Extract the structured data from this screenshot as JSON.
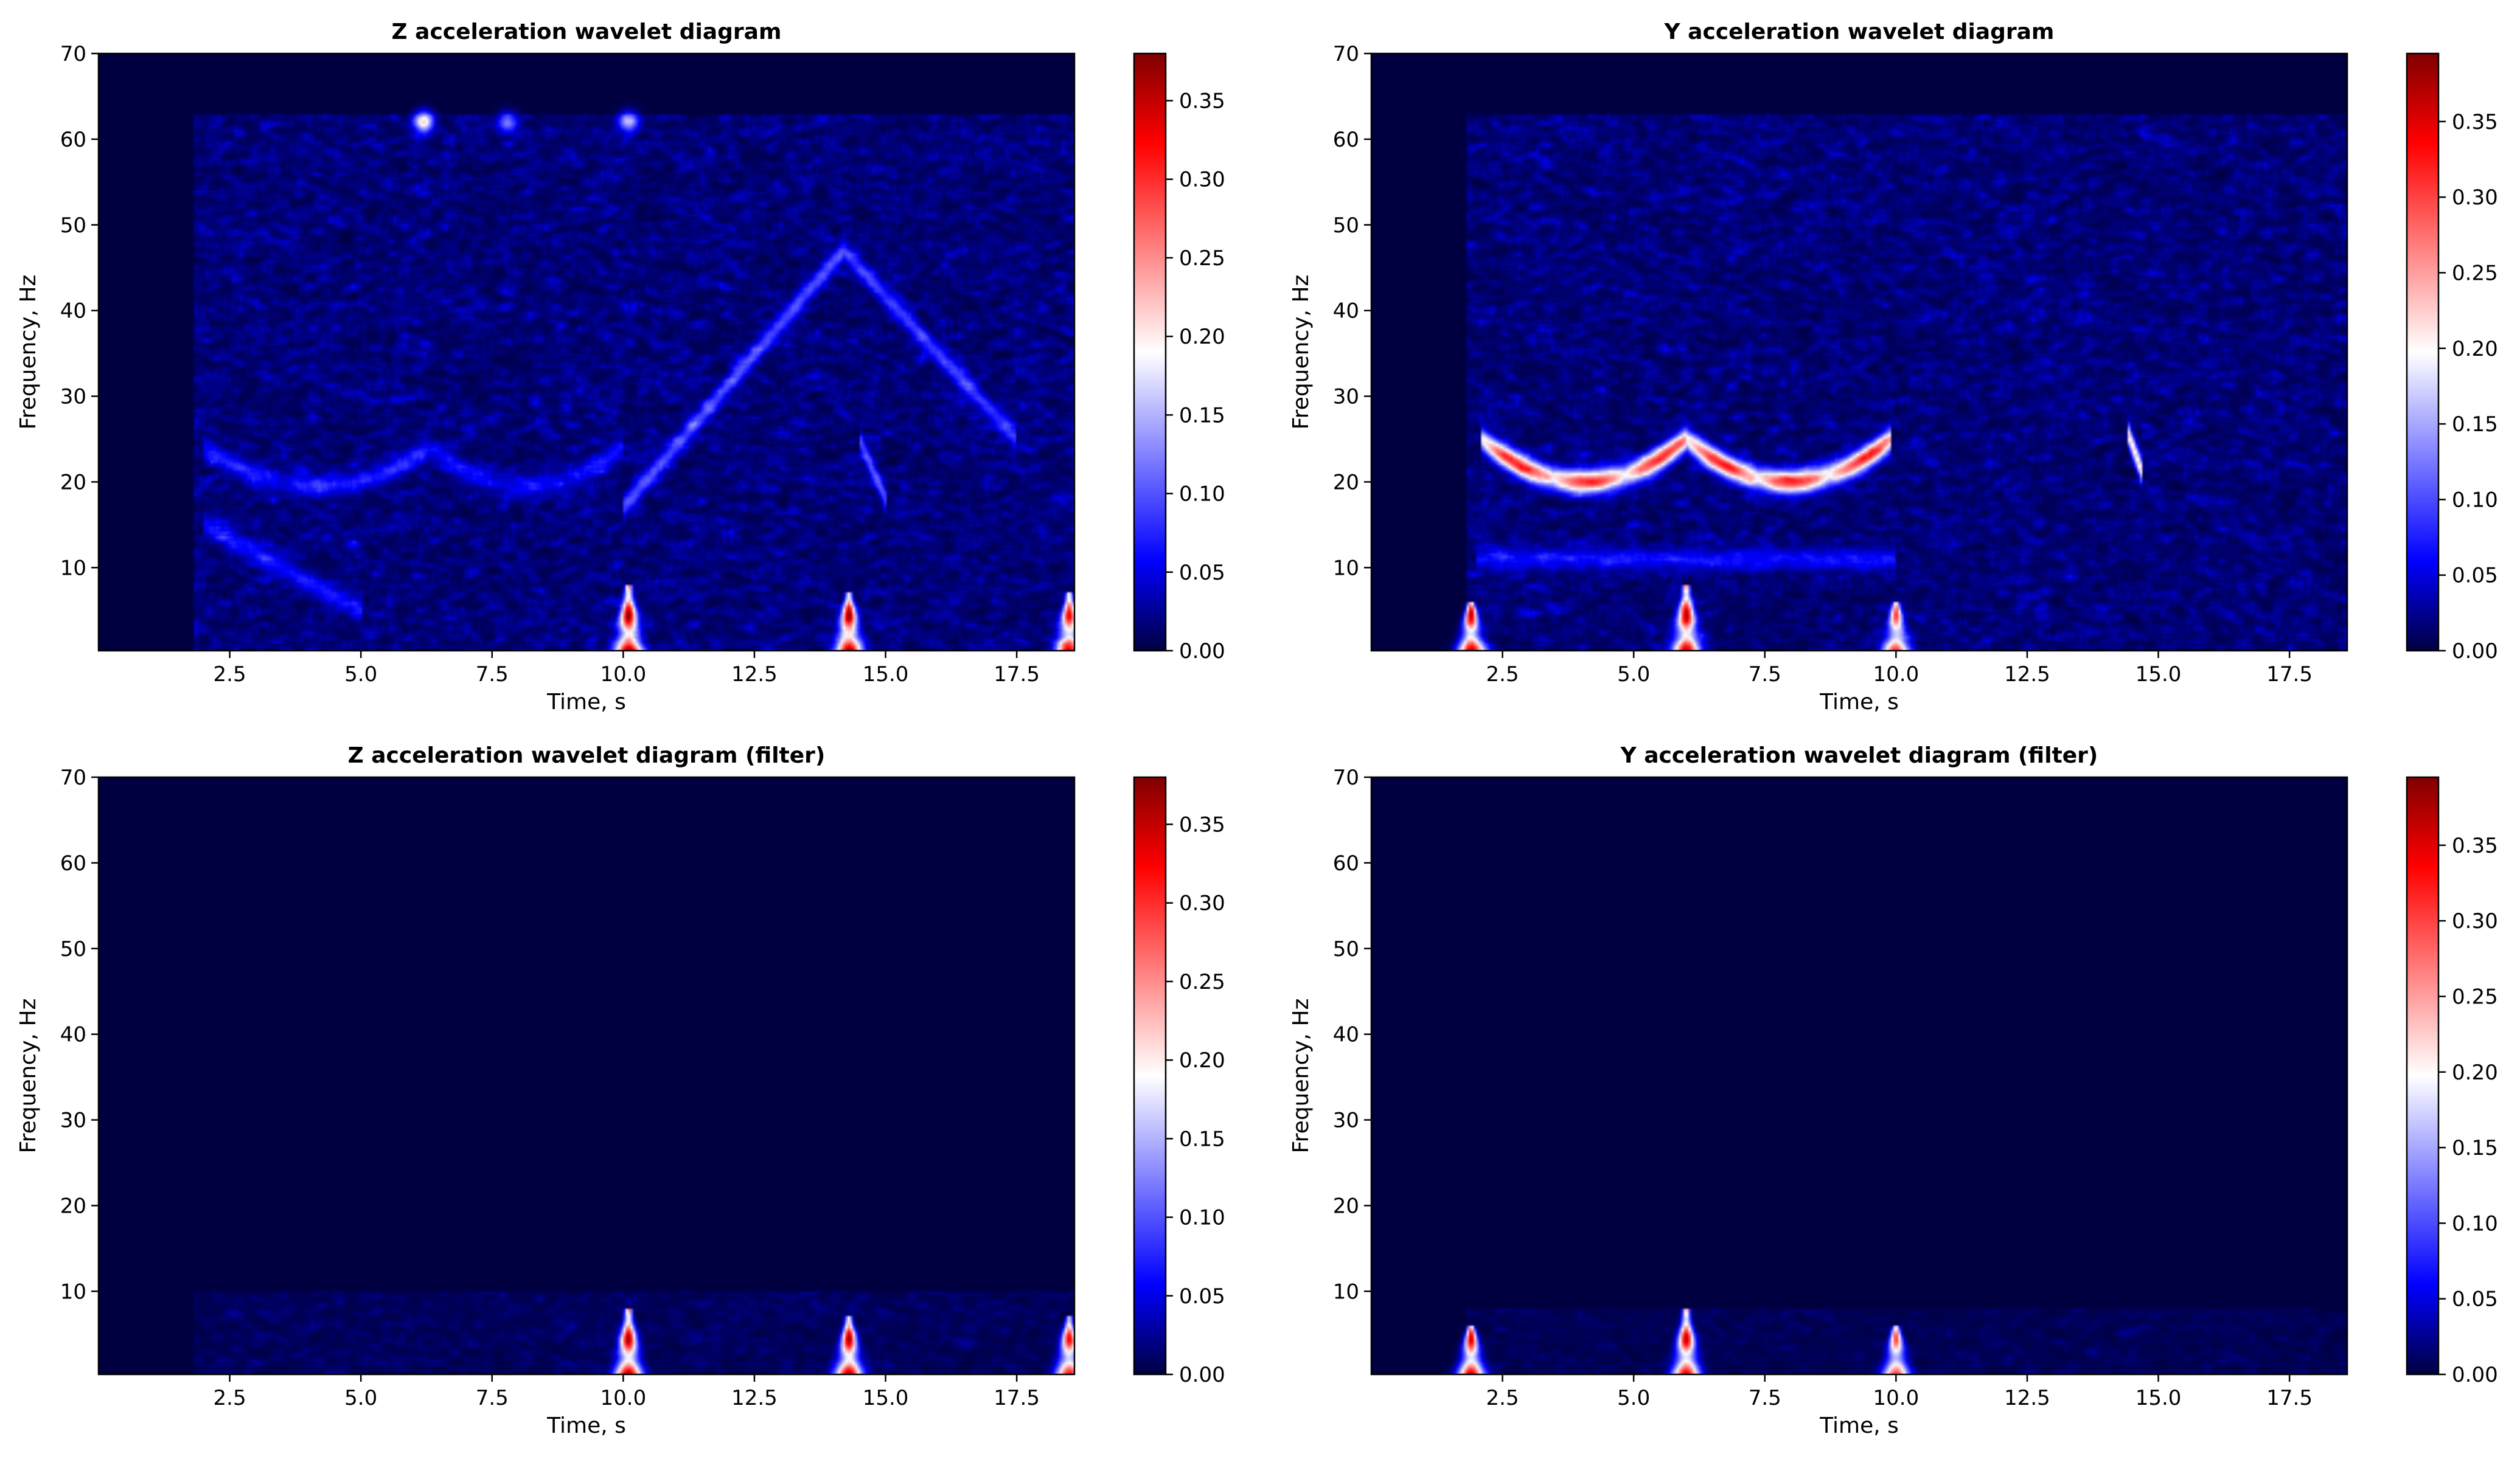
{
  "colormap": {
    "stops": [
      {
        "v": 0.0,
        "color": "#000040"
      },
      {
        "v": 0.15,
        "color": "#0000ff"
      },
      {
        "v": 0.5,
        "color": "#ffffff"
      },
      {
        "v": 0.85,
        "color": "#ff0000"
      },
      {
        "v": 1.0,
        "color": "#800000"
      }
    ]
  },
  "chart_data": [
    {
      "type": "heatmap",
      "title": "Z acceleration wavelet diagram",
      "xlabel": "Time, s",
      "ylabel": "Frequency, Hz",
      "xlim": [
        0,
        18.6
      ],
      "ylim": [
        0.3,
        70
      ],
      "xticks": [
        "2.5",
        "5.0",
        "7.5",
        "10.0",
        "12.5",
        "15.0",
        "17.5"
      ],
      "xtick_values": [
        2.5,
        5.0,
        7.5,
        10.0,
        12.5,
        15.0,
        17.5
      ],
      "yticks": [
        "10",
        "20",
        "30",
        "40",
        "50",
        "60",
        "70"
      ],
      "ytick_values": [
        10,
        20,
        30,
        40,
        50,
        60,
        70
      ],
      "colorbar": {
        "min": 0.0,
        "max": 0.38,
        "ticks": [
          "0.00",
          "0.05",
          "0.10",
          "0.15",
          "0.20",
          "0.25",
          "0.30",
          "0.35"
        ],
        "tick_values": [
          0.0,
          0.05,
          0.1,
          0.15,
          0.2,
          0.25,
          0.3,
          0.35
        ]
      },
      "data_start_time": 1.8,
      "max_frequency": 63,
      "noise_level": 0.06,
      "features": [
        {
          "kind": "arc",
          "t0": 2.0,
          "t1": 6.3,
          "f_ends": 24,
          "f_mid": 19.5,
          "amp": 0.06
        },
        {
          "kind": "arc",
          "t0": 6.3,
          "t1": 10.0,
          "f_ends": 24,
          "f_mid": 19.5,
          "amp": 0.05
        },
        {
          "kind": "line",
          "t0": 10.0,
          "f0": 17,
          "t1": 14.2,
          "f1": 47,
          "amp": 0.08
        },
        {
          "kind": "line",
          "t0": 14.2,
          "f0": 47,
          "t1": 17.5,
          "f1": 25,
          "amp": 0.07
        },
        {
          "kind": "line",
          "t0": 2.0,
          "f0": 15,
          "t1": 5.0,
          "f1": 5,
          "amp": 0.05
        },
        {
          "kind": "line",
          "t0": 14.5,
          "f0": 25,
          "t1": 15.0,
          "f1": 18,
          "amp": 0.08
        },
        {
          "kind": "spot",
          "t": 6.2,
          "f": 62,
          "amp": 0.2
        },
        {
          "kind": "spot",
          "t": 10.1,
          "f": 62,
          "amp": 0.14
        },
        {
          "kind": "spot",
          "t": 7.8,
          "f": 62,
          "amp": 0.1
        },
        {
          "kind": "spike",
          "t": 10.1,
          "height": 8,
          "amp": 0.36
        },
        {
          "kind": "spike",
          "t": 14.3,
          "height": 7,
          "amp": 0.36
        },
        {
          "kind": "spike",
          "t": 18.5,
          "height": 7,
          "amp": 0.32
        }
      ]
    },
    {
      "type": "heatmap",
      "title": "Y acceleration wavelet diagram",
      "xlabel": "Time, s",
      "ylabel": "Frequency, Hz",
      "xlim": [
        0,
        18.6
      ],
      "ylim": [
        0.3,
        70
      ],
      "xticks": [
        "2.5",
        "5.0",
        "7.5",
        "10.0",
        "12.5",
        "15.0",
        "17.5"
      ],
      "xtick_values": [
        2.5,
        5.0,
        7.5,
        10.0,
        12.5,
        15.0,
        17.5
      ],
      "yticks": [
        "10",
        "20",
        "30",
        "40",
        "50",
        "60",
        "70"
      ],
      "ytick_values": [
        10,
        20,
        30,
        40,
        50,
        60,
        70
      ],
      "colorbar": {
        "min": 0.0,
        "max": 0.395,
        "ticks": [
          "0.00",
          "0.05",
          "0.10",
          "0.15",
          "0.20",
          "0.25",
          "0.30",
          "0.35"
        ],
        "tick_values": [
          0.0,
          0.05,
          0.1,
          0.15,
          0.2,
          0.25,
          0.3,
          0.35
        ]
      },
      "data_start_time": 1.8,
      "max_frequency": 63,
      "noise_level": 0.06,
      "features": [
        {
          "kind": "arc",
          "t0": 2.1,
          "t1": 6.0,
          "f_ends": 25,
          "f_mid": 20,
          "amp": 0.3
        },
        {
          "kind": "arc",
          "t0": 6.0,
          "t1": 9.9,
          "f_ends": 25,
          "f_mid": 20,
          "amp": 0.3
        },
        {
          "kind": "line",
          "t0": 2.0,
          "f0": 11,
          "t1": 10.0,
          "f1": 11,
          "amp": 0.05
        },
        {
          "kind": "line",
          "t0": 14.4,
          "f0": 26,
          "t1": 14.7,
          "f1": 21,
          "amp": 0.2
        },
        {
          "kind": "spike",
          "t": 1.9,
          "height": 6,
          "amp": 0.36
        },
        {
          "kind": "spike",
          "t": 6.0,
          "height": 8,
          "amp": 0.36
        },
        {
          "kind": "spike",
          "t": 10.0,
          "height": 6,
          "amp": 0.3
        }
      ]
    },
    {
      "type": "heatmap",
      "title": "Z acceleration wavelet diagram (filter)",
      "xlabel": "Time, s",
      "ylabel": "Frequency, Hz",
      "xlim": [
        0,
        18.6
      ],
      "ylim": [
        0.3,
        70
      ],
      "xticks": [
        "2.5",
        "5.0",
        "7.5",
        "10.0",
        "12.5",
        "15.0",
        "17.5"
      ],
      "xtick_values": [
        2.5,
        5.0,
        7.5,
        10.0,
        12.5,
        15.0,
        17.5
      ],
      "yticks": [
        "10",
        "20",
        "30",
        "40",
        "50",
        "60",
        "70"
      ],
      "ytick_values": [
        10,
        20,
        30,
        40,
        50,
        60,
        70
      ],
      "colorbar": {
        "min": 0.0,
        "max": 0.38,
        "ticks": [
          "0.00",
          "0.05",
          "0.10",
          "0.15",
          "0.20",
          "0.25",
          "0.30",
          "0.35"
        ],
        "tick_values": [
          0.0,
          0.05,
          0.1,
          0.15,
          0.2,
          0.25,
          0.3,
          0.35
        ]
      },
      "data_start_time": 1.8,
      "max_frequency": 10,
      "noise_level": 0.03,
      "features": [
        {
          "kind": "spike",
          "t": 10.1,
          "height": 8,
          "amp": 0.36
        },
        {
          "kind": "spike",
          "t": 14.3,
          "height": 7,
          "amp": 0.36
        },
        {
          "kind": "spike",
          "t": 18.5,
          "height": 7,
          "amp": 0.32
        }
      ]
    },
    {
      "type": "heatmap",
      "title": "Y acceleration wavelet diagram (filter)",
      "xlabel": "Time, s",
      "ylabel": "Frequency, Hz",
      "xlim": [
        0,
        18.6
      ],
      "ylim": [
        0.3,
        70
      ],
      "xticks": [
        "2.5",
        "5.0",
        "7.5",
        "10.0",
        "12.5",
        "15.0",
        "17.5"
      ],
      "xtick_values": [
        2.5,
        5.0,
        7.5,
        10.0,
        12.5,
        15.0,
        17.5
      ],
      "yticks": [
        "10",
        "20",
        "30",
        "40",
        "50",
        "60",
        "70"
      ],
      "ytick_values": [
        10,
        20,
        30,
        40,
        50,
        60,
        70
      ],
      "colorbar": {
        "min": 0.0,
        "max": 0.395,
        "ticks": [
          "0.00",
          "0.05",
          "0.10",
          "0.15",
          "0.20",
          "0.25",
          "0.30",
          "0.35"
        ],
        "tick_values": [
          0.0,
          0.05,
          0.1,
          0.15,
          0.2,
          0.25,
          0.3,
          0.35
        ]
      },
      "data_start_time": 1.8,
      "max_frequency": 8,
      "noise_level": 0.025,
      "features": [
        {
          "kind": "spike",
          "t": 1.9,
          "height": 6,
          "amp": 0.36
        },
        {
          "kind": "spike",
          "t": 6.0,
          "height": 8,
          "amp": 0.36
        },
        {
          "kind": "spike",
          "t": 10.0,
          "height": 6,
          "amp": 0.3
        }
      ]
    }
  ]
}
